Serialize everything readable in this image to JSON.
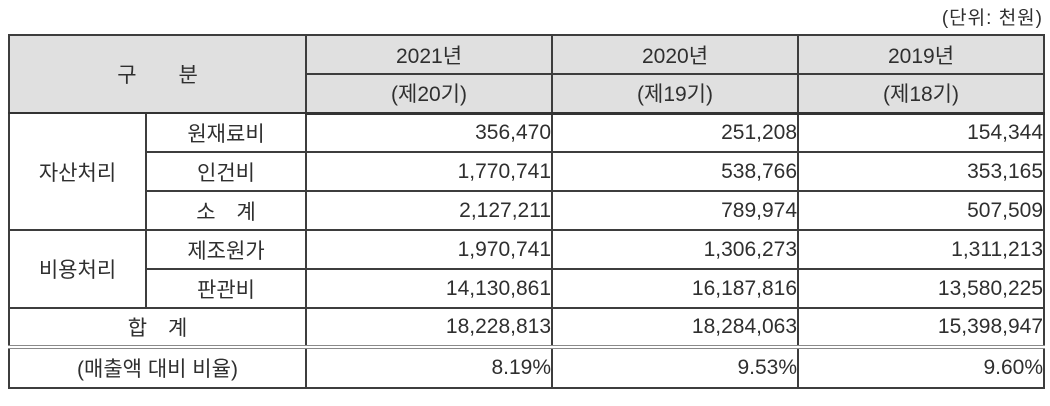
{
  "unit_label": "(단위: 천원)",
  "table": {
    "header": {
      "category_label": "구　　분",
      "year_columns": [
        {
          "year": "2021년",
          "period": "(제20기)"
        },
        {
          "year": "2020년",
          "period": "(제19기)"
        },
        {
          "year": "2019년",
          "period": "(제18기)"
        }
      ]
    },
    "sections": [
      {
        "group": "자산처리",
        "rows": [
          {
            "label": "원재료비",
            "values": [
              "356,470",
              "251,208",
              "154,344"
            ]
          },
          {
            "label": "인건비",
            "values": [
              "1,770,741",
              "538,766",
              "353,165"
            ]
          },
          {
            "label": "소　계",
            "values": [
              "2,127,211",
              "789,974",
              "507,509"
            ]
          }
        ]
      },
      {
        "group": "비용처리",
        "rows": [
          {
            "label": "제조원가",
            "values": [
              "1,970,741",
              "1,306,273",
              "1,311,213"
            ]
          },
          {
            "label": "판관비",
            "values": [
              "14,130,861",
              "16,187,816",
              "13,580,225"
            ]
          }
        ]
      }
    ],
    "total_row": {
      "label": "합　계",
      "values": [
        "18,228,813",
        "18,284,063",
        "15,398,947"
      ]
    },
    "ratio_row": {
      "label": "(매출액 대비 비율)",
      "values": [
        "8.19%",
        "9.53%",
        "9.60%"
      ]
    }
  },
  "colors": {
    "header_bg": "#e0e0e0",
    "border": "#3d3d3d",
    "section_divider": "#8a8a8a",
    "text": "#2f2f2f"
  }
}
